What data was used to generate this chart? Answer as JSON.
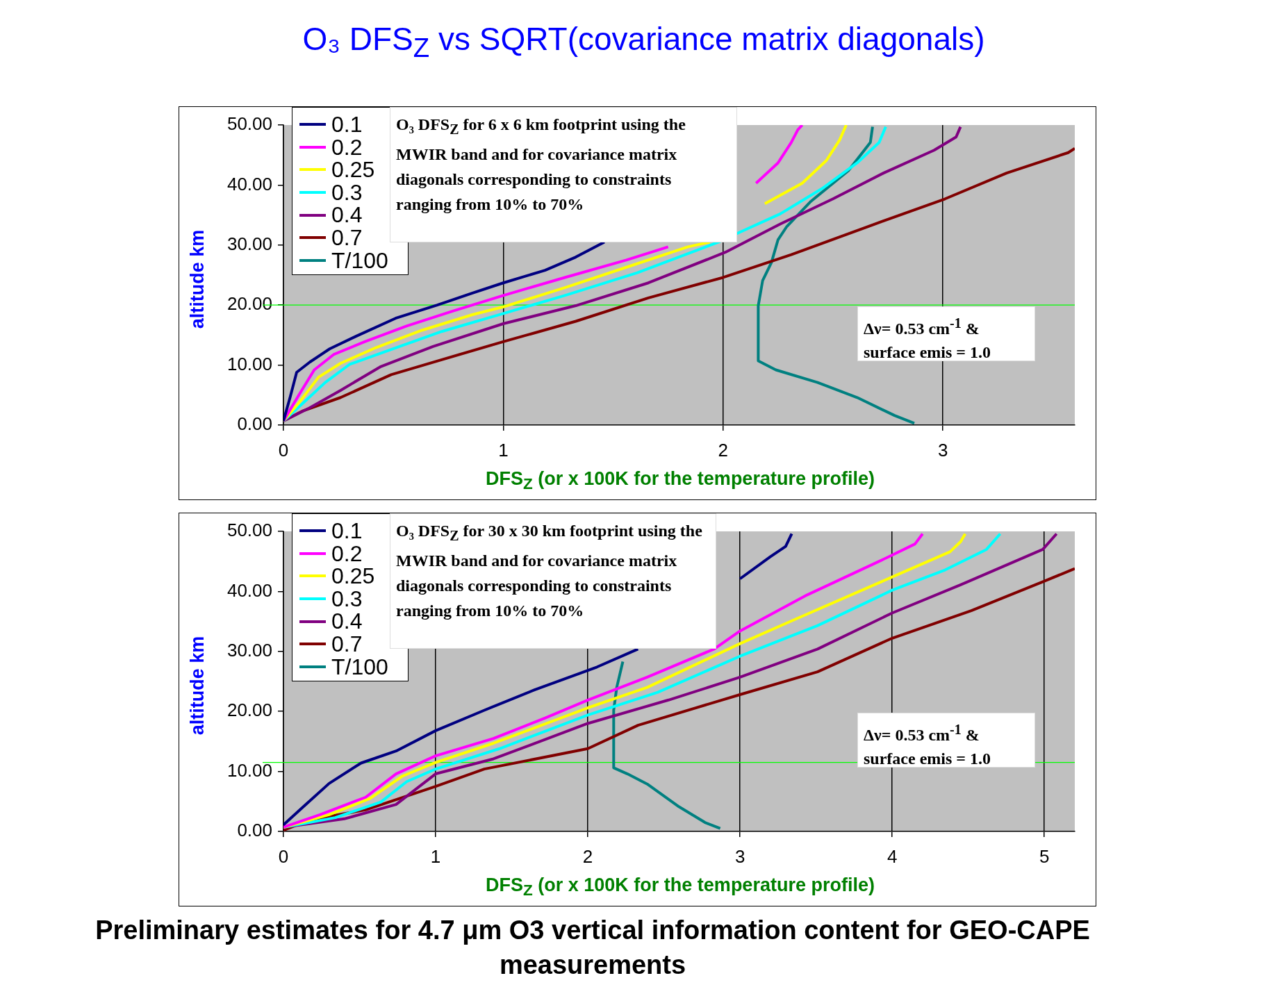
{
  "chart_data": [
    {
      "type": "line",
      "title": "O₃ DFS$_{Z}$ vs SQRT(covariance matrix diagonals)",
      "xlabel": "DFS$_{Z}$ (or x 100K for the temperature profile)",
      "ylabel": "altitude km",
      "legend": "top left",
      "grid": "x",
      "marker": "none",
      "line_style": "solid",
      "xlim": [
        0,
        3.6
      ],
      "xticks": [
        0,
        1,
        2,
        3
      ],
      "ylim": [
        0,
        50
      ],
      "yticks": [
        {
          "value": 0,
          "label": "0.00"
        },
        {
          "value": 10,
          "label": "10.00"
        },
        {
          "value": 20,
          "label": "20.00"
        },
        {
          "value": 30,
          "label": "30.00"
        },
        {
          "value": 40,
          "label": "40.00"
        },
        {
          "value": 50,
          "label": "50.00"
        }
      ],
      "ref_lines": [
        {
          "axis": "y",
          "value": 20,
          "color": "#00ff00"
        }
      ],
      "annotations": [
        "O₃ DFS$_{Z}$ for 6 x 6 km footprint using the MWIR band and for covariance matrix diagonals corresponding to constraints ranging from 10% to 70%",
        "Δν= 0.53 cm$^{-1}$ & surface emis = 1.0"
      ],
      "series": [
        {
          "name": "0.1",
          "color": "#000080",
          "x": [
            0,
            0.03,
            0.06,
            0.12,
            0.21,
            0.33,
            0.51,
            0.7,
            0.86,
            1.0,
            1.19,
            1.33,
            1.46
          ],
          "values": [
            0.7,
            4.6,
            8.8,
            10.5,
            12.7,
            14.8,
            17.8,
            20,
            22,
            23.7,
            25.8,
            28,
            30.5
          ]
        },
        {
          "name": "0.2",
          "color": "#ff00ff",
          "x": [
            0,
            0.07,
            0.14,
            0.23,
            0.37,
            0.56,
            0.77,
            1.0,
            1.28,
            1.56,
            1.75,
            1.9,
            2.15,
            2.25,
            2.31,
            2.34,
            2.36
          ],
          "values": [
            0.7,
            5,
            9.2,
            11.8,
            13.9,
            16.5,
            19,
            21.6,
            24.6,
            27.5,
            29.7,
            null,
            40.3,
            43.7,
            47.1,
            49.2,
            50
          ]
        },
        {
          "name": "0.25",
          "color": "#ffff00",
          "x": [
            0,
            0.07,
            0.16,
            0.26,
            0.42,
            0.63,
            0.86,
            1.0,
            1.28,
            1.56,
            1.84,
            1.94,
            2.0,
            2.19,
            2.36,
            2.47,
            2.53,
            2.56
          ],
          "values": [
            0.7,
            3.7,
            8,
            10.3,
            12.9,
            15.8,
            18.4,
            19.7,
            22.9,
            26.3,
            29.7,
            30.5,
            null,
            36.9,
            40.3,
            44.1,
            47.5,
            50
          ]
        },
        {
          "name": "0.3",
          "color": "#00ffff",
          "x": [
            0,
            0.09,
            0.19,
            0.3,
            0.49,
            0.72,
            1.0,
            1.28,
            1.61,
            1.98,
            2.08,
            2.26,
            2.45,
            2.61,
            2.71,
            2.74
          ],
          "values": [
            0.7,
            3.7,
            7.1,
            10.1,
            12.6,
            15.6,
            18.6,
            21.6,
            25.4,
            30.5,
            32.2,
            35.2,
            39.4,
            43.7,
            47.1,
            49.7
          ]
        },
        {
          "name": "0.4",
          "color": "#800080",
          "x": [
            0,
            0.12,
            0.26,
            0.44,
            0.68,
            1.0,
            1.33,
            1.66,
            2.01,
            2.26,
            2.5,
            2.73,
            2.96,
            3.06,
            3.08
          ],
          "values": [
            0.7,
            2.9,
            5.8,
            9.7,
            13.1,
            16.9,
            19.9,
            23.7,
            28.8,
            33.5,
            37.7,
            42,
            45.8,
            48,
            49.7
          ]
        },
        {
          "name": "0.7",
          "color": "#800000",
          "x": [
            0,
            0.09,
            0.26,
            0.49,
            0.72,
            1.0,
            1.33,
            1.66,
            2.0,
            2.31,
            2.66,
            3.01,
            3.29,
            3.57,
            3.6
          ],
          "values": [
            0.7,
            2.4,
            4.6,
            8.4,
            10.9,
            13.9,
            17.3,
            21.2,
            24.6,
            28.4,
            33.1,
            37.7,
            42,
            45.4,
            46.1
          ]
        },
        {
          "name": "T/100",
          "color": "#008080",
          "x": [
            2.87,
            2.78,
            2.61,
            2.43,
            2.24,
            2.16,
            2.16,
            2.18,
            2.22,
            2.25,
            2.29,
            2.4,
            2.57,
            2.67,
            2.68
          ],
          "values": [
            0.3,
            1.6,
            4.6,
            7.1,
            9.2,
            10.7,
            19.9,
            24.1,
            27.1,
            30.9,
            33.1,
            37.3,
            42.4,
            47.1,
            49.7
          ]
        }
      ]
    },
    {
      "type": "line",
      "xlabel": "DFS$_{Z}$ (or x 100K for the temperature profile)",
      "ylabel": "altitude km",
      "legend": "top left",
      "grid": "x",
      "marker": "none",
      "line_style": "solid",
      "xlim": [
        0,
        5.2
      ],
      "xticks": [
        0,
        1,
        2,
        3,
        4,
        5
      ],
      "ylim": [
        0,
        50
      ],
      "yticks": [
        {
          "value": 0,
          "label": "0.00"
        },
        {
          "value": 10,
          "label": "10.00"
        },
        {
          "value": 20,
          "label": "20.00"
        },
        {
          "value": 30,
          "label": "30.00"
        },
        {
          "value": 40,
          "label": "40.00"
        },
        {
          "value": 50,
          "label": "50.00"
        }
      ],
      "ref_lines": [
        {
          "axis": "y",
          "value": 11.5,
          "color": "#00ff00"
        }
      ],
      "annotations": [
        "O₃ DFS$_{Z}$ for 30 x 30 km footprint using the MWIR band and for covariance matrix diagonals corresponding to constraints ranging from 10% to 70%",
        "Δν= 0.53 cm$^{-1}$ & surface emis = 1.0",
        "Preliminary estimates for 4.7 μm O3 vertical information content for GEO-CAPE measurements"
      ],
      "series": [
        {
          "name": "0.1",
          "color": "#000080",
          "x": [
            0,
            0.13,
            0.3,
            0.51,
            0.74,
            1.0,
            1.32,
            1.65,
            2.06,
            2.33,
            2.6,
            3.0,
            3.2,
            3.3,
            3.34
          ],
          "values": [
            1.1,
            4.1,
            8,
            11.4,
            13.4,
            16.8,
            20.2,
            23.6,
            27.4,
            30.4,
            null,
            42.1,
            45.8,
            47.5,
            49.6
          ]
        },
        {
          "name": "0.2",
          "color": "#ff00ff",
          "x": [
            0,
            0.24,
            0.54,
            0.74,
            1.0,
            1.38,
            1.72,
            2.0,
            2.39,
            2.83,
            3.0,
            3.44,
            3.98,
            4.15,
            4.2
          ],
          "values": [
            0.7,
            2.8,
            5.7,
            9.6,
            12.6,
            15.5,
            18.9,
            21.9,
            25.7,
            30.4,
            33.4,
            39.4,
            45.8,
            47.9,
            49.6
          ]
        },
        {
          "name": "0.25",
          "color": "#ffff00",
          "x": [
            0,
            0.3,
            0.57,
            0.78,
            1.0,
            1.38,
            2.0,
            2.39,
            3.0,
            3.34,
            4.0,
            4.38,
            4.45,
            4.48
          ],
          "values": [
            0.7,
            2.8,
            5.5,
            9.2,
            11.5,
            14.7,
            20.6,
            24,
            31.3,
            35.1,
            42.4,
            46.6,
            48.3,
            49.6
          ]
        },
        {
          "name": "0.3",
          "color": "#00ffff",
          "x": [
            0,
            0.34,
            0.64,
            0.81,
            1.0,
            1.42,
            2.0,
            2.46,
            3.0,
            3.51,
            4.0,
            4.35,
            4.62,
            4.71
          ],
          "values": [
            0.7,
            2.3,
            4.9,
            8.3,
            10.4,
            13.8,
            19.4,
            23.2,
            29.2,
            34.3,
            40.2,
            43.6,
            47,
            49.6
          ]
        },
        {
          "name": "0.4",
          "color": "#800080",
          "x": [
            0,
            0.4,
            0.74,
            1.0,
            1.38,
            2.0,
            2.53,
            3.0,
            3.51,
            4.0,
            4.45,
            4.99,
            5.08
          ],
          "values": [
            0.7,
            2.1,
            4.5,
            9.6,
            12.1,
            18,
            21.9,
            25.7,
            30.4,
            36.4,
            41.1,
            47,
            49.6
          ]
        },
        {
          "name": "0.7",
          "color": "#800000",
          "x": [
            0,
            0.17,
            0.54,
            1.0,
            1.32,
            2.0,
            2.33,
            3.0,
            3.51,
            4.0,
            4.52,
            5.0,
            5.2
          ],
          "values": [
            0.2,
            1.9,
            3.6,
            7.5,
            10.4,
            13.8,
            17.7,
            22.8,
            26.6,
            32.2,
            36.8,
            41.7,
            43.8
          ]
        },
        {
          "name": "T/100",
          "color": "#008080",
          "x": [
            2.87,
            2.77,
            2.6,
            2.39,
            2.26,
            2.17,
            2.17,
            2.19,
            2.23
          ],
          "values": [
            0.5,
            1.5,
            4.1,
            7.9,
            9.6,
            10.6,
            20.2,
            24,
            28.3
          ]
        }
      ]
    }
  ]
}
